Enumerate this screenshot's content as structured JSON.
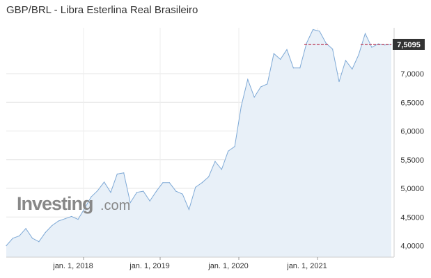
{
  "chart_data": {
    "type": "area",
    "title": "GBP/BRL - Libra Esterlina Real Brasileiro",
    "x_tick_labels": [
      "jan. 1, 2018",
      "jan. 1, 2019",
      "jan. 1, 2020",
      "jan. 1, 2021"
    ],
    "y_tick_labels": [
      "4,0000",
      "4,5000",
      "5,0000",
      "5,5000",
      "6,0000",
      "6,5000",
      "7,0000"
    ],
    "ylim": [
      3.8,
      7.8
    ],
    "y_ticks": [
      4.0,
      4.5,
      5.0,
      5.5,
      6.0,
      6.5,
      7.0
    ],
    "grid": true,
    "current_value": 7.5095,
    "current_value_label": "7,5095",
    "watermark": "Investing",
    "watermark_suffix": ".com",
    "colors": {
      "line": "#7ea9d6",
      "fill": "#e8f0f8",
      "current_box": "#333333",
      "marker": "#c0506a"
    },
    "series": [
      {
        "values": [
          4.0,
          4.13,
          4.17,
          4.3,
          4.13,
          4.07,
          4.23,
          4.35,
          4.43,
          4.47,
          4.51,
          4.46,
          4.65,
          4.85,
          4.96,
          5.11,
          4.93,
          5.25,
          5.27,
          4.75,
          4.93,
          4.95,
          4.78,
          4.95,
          5.1,
          5.1,
          4.95,
          4.9,
          4.63,
          5.02,
          5.1,
          5.2,
          5.47,
          5.33,
          5.65,
          5.73,
          6.43,
          6.9,
          6.59,
          6.77,
          6.82,
          7.35,
          7.25,
          7.42,
          7.1,
          7.1,
          7.53,
          7.77,
          7.74,
          7.53,
          7.43,
          6.86,
          7.23,
          7.08,
          7.33,
          7.7,
          7.46,
          7.52,
          7.5,
          7.51
        ]
      }
    ]
  }
}
